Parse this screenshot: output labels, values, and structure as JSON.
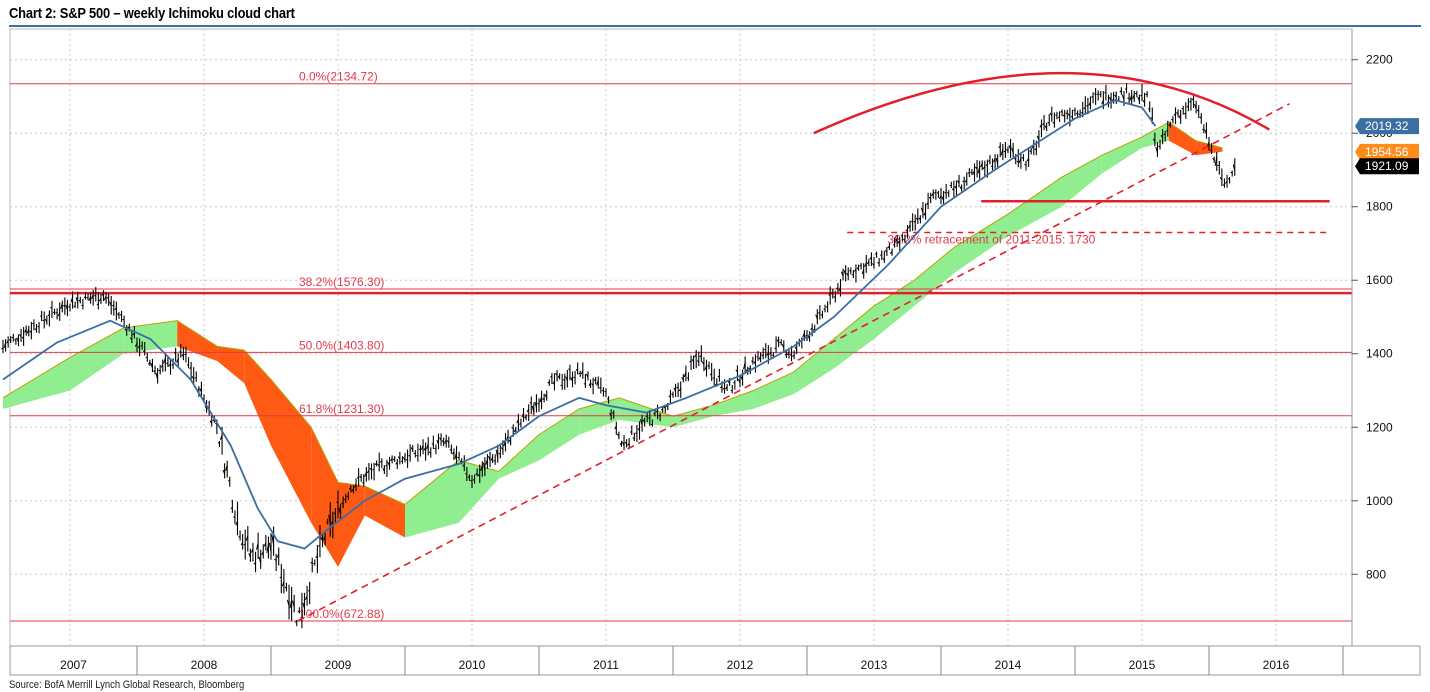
{
  "page": {
    "title": "Chart 2: S&P 500 – weekly Ichimoku cloud chart",
    "source": "Source: BofA Merrill Lynch Global Research, Bloomberg"
  },
  "colors": {
    "price": "#000000",
    "baseline": "#3c6ea3",
    "cloud_bull": "#90ee90",
    "cloud_bear": "#ff5a14",
    "span_edge": "#b7a400",
    "fib": "#e03a4c",
    "trend": "#e0202a",
    "grid": "#c8c8c8",
    "label_blue": "#3c6ea3",
    "label_orange": "#ff8c1a",
    "label_black": "#000000"
  },
  "chart_data": {
    "type": "line",
    "title": "Chart 2: S&P 500 – weekly Ichimoku cloud chart",
    "xlabel": "",
    "ylabel": "",
    "x_ticks": [
      "2007",
      "2008",
      "2009",
      "2010",
      "2011",
      "2012",
      "2013",
      "2014",
      "2015",
      "2016"
    ],
    "x_range": [
      2007.0,
      2017.0
    ],
    "ylim": [
      660,
      2260
    ],
    "y_ticks": [
      800,
      1000,
      1200,
      1400,
      1600,
      1800,
      2000,
      2200
    ],
    "grid": true,
    "legend": "none",
    "series": [
      {
        "role": "price",
        "style": "weekly bars",
        "x": [
          2007.0,
          2007.25,
          2007.5,
          2007.75,
          2007.9,
          2008.15,
          2008.35,
          2008.5,
          2008.6,
          2008.75,
          2008.85,
          2009.0,
          2009.15,
          2009.2,
          2009.4,
          2009.6,
          2009.8,
          2010.0,
          2010.3,
          2010.5,
          2010.7,
          2010.9,
          2011.1,
          2011.3,
          2011.5,
          2011.62,
          2011.75,
          2011.95,
          2012.2,
          2012.4,
          2012.6,
          2012.8,
          2012.9,
          2013.1,
          2013.3,
          2013.5,
          2013.7,
          2013.95,
          2014.1,
          2014.3,
          2014.5,
          2014.65,
          2014.8,
          2015.0,
          2015.2,
          2015.4,
          2015.55,
          2015.62,
          2015.75,
          2015.9,
          2016.05,
          2016.12,
          2016.2
        ],
        "y": [
          1420,
          1480,
          1540,
          1560,
          1490,
          1350,
          1400,
          1280,
          1200,
          950,
          850,
          880,
          740,
          680,
          900,
          1040,
          1090,
          1120,
          1160,
          1060,
          1130,
          1230,
          1320,
          1350,
          1290,
          1150,
          1200,
          1250,
          1400,
          1300,
          1380,
          1420,
          1400,
          1500,
          1620,
          1650,
          1700,
          1830,
          1850,
          1900,
          1960,
          1920,
          2040,
          2060,
          2100,
          2110,
          2090,
          1950,
          2050,
          2080,
          1920,
          1860,
          1921.09
        ]
      },
      {
        "role": "kijun-sen (base line)",
        "x": [
          2007.0,
          2007.4,
          2007.8,
          2008.1,
          2008.4,
          2008.7,
          2008.9,
          2009.05,
          2009.25,
          2009.45,
          2009.7,
          2010.0,
          2010.4,
          2010.7,
          2011.0,
          2011.3,
          2011.5,
          2011.8,
          2012.1,
          2012.5,
          2012.9,
          2013.2,
          2013.6,
          2014.0,
          2014.4,
          2014.7,
          2015.0,
          2015.3,
          2015.5,
          2015.6
        ],
        "y": [
          1330,
          1430,
          1490,
          1440,
          1330,
          1150,
          980,
          890,
          870,
          930,
          1000,
          1060,
          1100,
          1150,
          1230,
          1280,
          1260,
          1240,
          1280,
          1340,
          1420,
          1500,
          1640,
          1800,
          1900,
          1970,
          2040,
          2090,
          2070,
          2019.32
        ]
      },
      {
        "role": "cloud (kumo)",
        "style": "shaded band, green = bullish, orange = bearish",
        "x": [
          2007.0,
          2007.5,
          2007.9,
          2008.3,
          2008.6,
          2008.8,
          2009.0,
          2009.3,
          2009.5,
          2009.7,
          2010.0,
          2010.4,
          2010.7,
          2011.0,
          2011.3,
          2011.6,
          2012.0,
          2012.3,
          2012.6,
          2012.9,
          2013.2,
          2013.5,
          2013.8,
          2014.1,
          2014.5,
          2014.9,
          2015.2,
          2015.5,
          2015.7,
          2015.9,
          2016.1
        ],
        "upper": [
          1280,
          1390,
          1470,
          1490,
          1420,
          1410,
          1330,
          1200,
          1050,
          1040,
          990,
          1110,
          1080,
          1180,
          1250,
          1280,
          1230,
          1260,
          1300,
          1350,
          1440,
          1530,
          1600,
          1690,
          1780,
          1880,
          1940,
          1990,
          2030,
          1980,
          1960
        ],
        "lower": [
          1250,
          1300,
          1400,
          1420,
          1380,
          1320,
          1150,
          940,
          820,
          960,
          900,
          940,
          1060,
          1110,
          1180,
          1220,
          1200,
          1230,
          1250,
          1290,
          1360,
          1440,
          1530,
          1620,
          1720,
          1800,
          1890,
          1960,
          1980,
          1940,
          1950
        ]
      }
    ],
    "horizontal_lines": [
      {
        "label": "0.0%(2134.72)",
        "y": 2134.72,
        "style": "fib"
      },
      {
        "label": "38.2%(1576.30)",
        "y": 1576.3,
        "style": "fib"
      },
      {
        "label": "50.0%(1403.80)",
        "y": 1403.8,
        "style": "fib"
      },
      {
        "label": "61.8%(1231.30)",
        "y": 1231.3,
        "style": "fib"
      },
      {
        "label": "100.0%(672.88)",
        "y": 672.88,
        "style": "fib"
      },
      {
        "label": "",
        "y": 1565,
        "style": "thick"
      },
      {
        "label": "",
        "y": 1815,
        "style": "thick",
        "x_from": 2014.3,
        "x_to": 2016.9
      },
      {
        "label": "38.2% retracement of 2011-2015: 1730",
        "y": 1730,
        "style": "dashed",
        "x_from": 2013.3,
        "x_to": 2016.9
      }
    ],
    "trendline": {
      "style": "dashed",
      "from": [
        2009.2,
        672.88
      ],
      "to": [
        2016.6,
        2080
      ]
    },
    "arc": {
      "from": [
        2013.05,
        2000
      ],
      "peak": [
        2015.0,
        2165
      ],
      "to": [
        2016.45,
        2010
      ]
    },
    "value_labels": [
      {
        "text": "2019.32",
        "y": 2019.32,
        "color": "#3c6ea3"
      },
      {
        "text": "1954.56",
        "y": 1954.56,
        "color": "#ff8c1a"
      },
      {
        "text": "1921.09",
        "y": 1921.09,
        "color": "#000000"
      }
    ]
  }
}
